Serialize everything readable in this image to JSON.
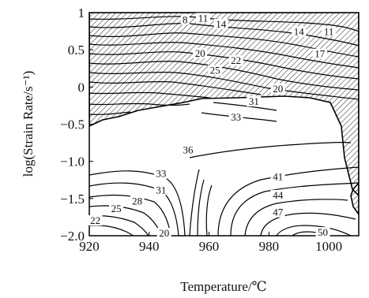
{
  "chart_data": {
    "type": "contour",
    "xlabel": "Temperature/℃",
    "ylabel": "log(Strain Rate/s⁻¹)",
    "xlim": [
      920,
      1010
    ],
    "ylim": [
      -2.0,
      1.0
    ],
    "x_ticks": [
      "920",
      "940",
      "960",
      "980",
      "1000"
    ],
    "y_ticks": [
      "1",
      "0.5",
      "0",
      "−0.5",
      "−1.0",
      "−1.5",
      "−2.0"
    ],
    "hatched_region": "instability",
    "contour_labels": [
      {
        "text": "8",
        "x": 952,
        "y": 0.88
      },
      {
        "text": "11",
        "x": 958,
        "y": 0.9
      },
      {
        "text": "14",
        "x": 964,
        "y": 0.82
      },
      {
        "text": "14",
        "x": 990,
        "y": 0.72
      },
      {
        "text": "11",
        "x": 1000,
        "y": 0.72
      },
      {
        "text": "17",
        "x": 997,
        "y": 0.42
      },
      {
        "text": "20",
        "x": 957,
        "y": 0.43
      },
      {
        "text": "22",
        "x": 969,
        "y": 0.33
      },
      {
        "text": "25",
        "x": 962,
        "y": 0.2
      },
      {
        "text": "20",
        "x": 983,
        "y": -0.05
      },
      {
        "text": "31",
        "x": 975,
        "y": -0.22
      },
      {
        "text": "33",
        "x": 969,
        "y": -0.43
      },
      {
        "text": "36",
        "x": 953,
        "y": -0.87
      },
      {
        "text": "33",
        "x": 944,
        "y": -1.19
      },
      {
        "text": "31",
        "x": 944,
        "y": -1.41
      },
      {
        "text": "28",
        "x": 936,
        "y": -1.56
      },
      {
        "text": "25",
        "x": 929,
        "y": -1.66
      },
      {
        "text": "22",
        "x": 922,
        "y": -1.82
      },
      {
        "text": "20",
        "x": 945,
        "y": -1.99
      },
      {
        "text": "41",
        "x": 983,
        "y": -1.23
      },
      {
        "text": "44",
        "x": 983,
        "y": -1.48
      },
      {
        "text": "47",
        "x": 983,
        "y": -1.71
      },
      {
        "text": "50",
        "x": 998,
        "y": -1.98
      }
    ]
  }
}
